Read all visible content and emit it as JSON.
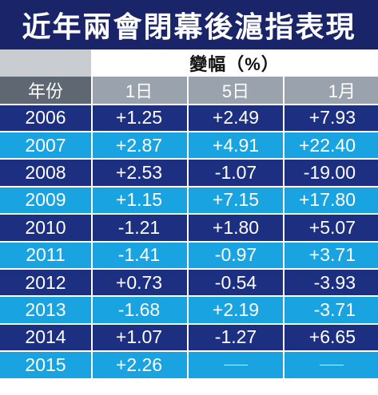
{
  "title": "近年兩會閉幕後滬指表現",
  "change_header": "變幅（%）",
  "columns": [
    "年份",
    "1日",
    "5日",
    "1月"
  ],
  "rows": [
    {
      "year": "2006",
      "d1": "+1.25",
      "d5": "+2.49",
      "m1": "+7.93"
    },
    {
      "year": "2007",
      "d1": "+2.87",
      "d5": "+4.91",
      "m1": "+22.40"
    },
    {
      "year": "2008",
      "d1": "+2.53",
      "d5": "-1.07",
      "m1": "-19.00"
    },
    {
      "year": "2009",
      "d1": "+1.15",
      "d5": "+7.15",
      "m1": "+17.80"
    },
    {
      "year": "2010",
      "d1": "-1.21",
      "d5": "+1.80",
      "m1": "+5.07"
    },
    {
      "year": "2011",
      "d1": "-1.41",
      "d5": "-0.97",
      "m1": "+3.71"
    },
    {
      "year": "2012",
      "d1": "+0.73",
      "d5": "-0.54",
      "m1": "-3.93"
    },
    {
      "year": "2013",
      "d1": "-1.68",
      "d5": "+2.19",
      "m1": "-3.71"
    },
    {
      "year": "2014",
      "d1": "+1.07",
      "d5": "-1.27",
      "m1": "+6.65"
    },
    {
      "year": "2015",
      "d1": "+2.26",
      "d5": "",
      "m1": ""
    }
  ],
  "colors": {
    "title_bg": "#1a2468",
    "row_dark": "#1d2f80",
    "row_light": "#1aa3e1",
    "header_row": "#9aa2ad",
    "header_year": "#5f6773",
    "header_left": "#c9ccd0"
  }
}
